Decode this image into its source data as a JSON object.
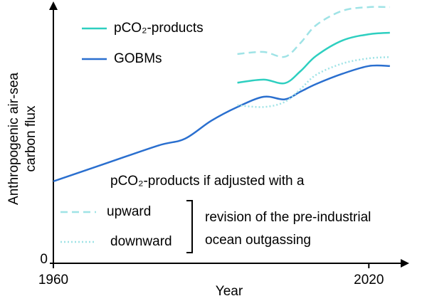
{
  "chart_data": {
    "type": "line",
    "ylabel": [
      "Anthropogenic air-sea",
      "carbon flux"
    ],
    "xlabel": "Year",
    "xlim": [
      1960,
      2027
    ],
    "xticks": [
      1960,
      2020
    ],
    "ylim": [
      0,
      10
    ],
    "yticks": [
      0
    ],
    "series": [
      {
        "name": "pCO₂-products",
        "color": "#2ecfc0",
        "style": "solid",
        "x": [
          1995,
          2000,
          2004,
          2007,
          2010,
          2015,
          2020,
          2024
        ],
        "values": [
          7.05,
          7.17,
          7.03,
          7.5,
          8.1,
          8.7,
          8.94,
          9.0
        ]
      },
      {
        "name": "GOBMs",
        "color": "#2a6fcf",
        "style": "solid",
        "x": [
          1960,
          1970,
          1980,
          1985,
          1990,
          1995,
          2000,
          2004,
          2007,
          2010,
          2015,
          2020,
          2024
        ],
        "values": [
          3.2,
          3.9,
          4.6,
          4.86,
          5.56,
          6.1,
          6.5,
          6.4,
          6.7,
          7.0,
          7.4,
          7.7,
          7.7
        ]
      },
      {
        "name": "upward",
        "color": "#9fe3e6",
        "style": "dashed",
        "x": [
          1995,
          2000,
          2004,
          2007,
          2010,
          2015,
          2020,
          2024
        ],
        "values": [
          8.17,
          8.25,
          8.06,
          8.6,
          9.3,
          9.86,
          10.0,
          10.0
        ]
      },
      {
        "name": "downward",
        "color": "#9fe3e6",
        "style": "dotted",
        "x": [
          1995,
          2000,
          2004,
          2007,
          2010,
          2015,
          2020,
          2024
        ],
        "values": [
          6.17,
          6.1,
          6.3,
          6.8,
          7.36,
          7.8,
          8.0,
          8.05
        ]
      }
    ],
    "annotations": [
      "pCO₂-products if adjusted with a",
      "revision of the pre-industrial",
      "ocean outgassing"
    ]
  }
}
